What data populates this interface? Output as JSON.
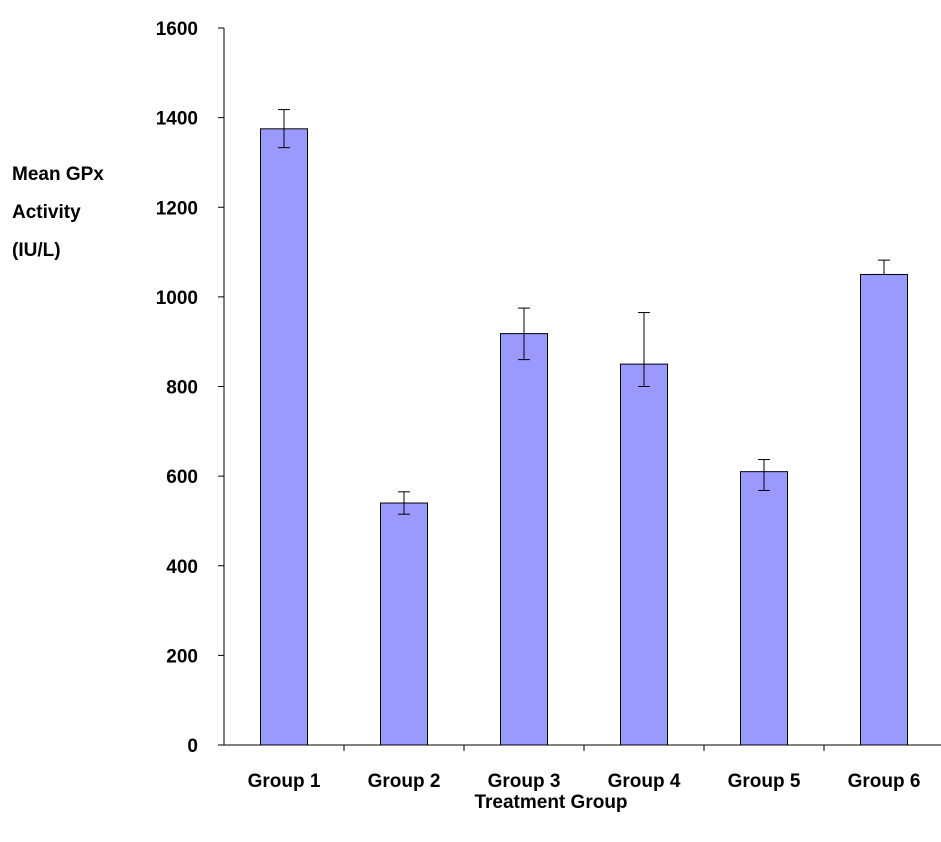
{
  "chart_data": {
    "type": "bar",
    "title": "",
    "xlabel": "Treatment Group",
    "ylabel_lines": [
      "Mean GPx",
      "Activity",
      "(IU/L)"
    ],
    "ylim": [
      0,
      1600
    ],
    "yticks": [
      "0",
      "200",
      "400",
      "600",
      "800",
      "1000",
      "1200",
      "1400",
      "1600"
    ],
    "categories": [
      "Group 1",
      "Group 2",
      "Group 3",
      "Group 4",
      "Group 5",
      "Group 6"
    ],
    "values": [
      1375,
      540,
      918,
      850,
      610,
      1050
    ],
    "error_upper": [
      1418,
      565,
      975,
      965,
      637,
      1082
    ],
    "error_lower": [
      1333,
      515,
      860,
      800,
      568,
      1050
    ],
    "bar_color": "#9999ff",
    "bar_border_color": "#000000",
    "grid": false,
    "legend": "none"
  }
}
